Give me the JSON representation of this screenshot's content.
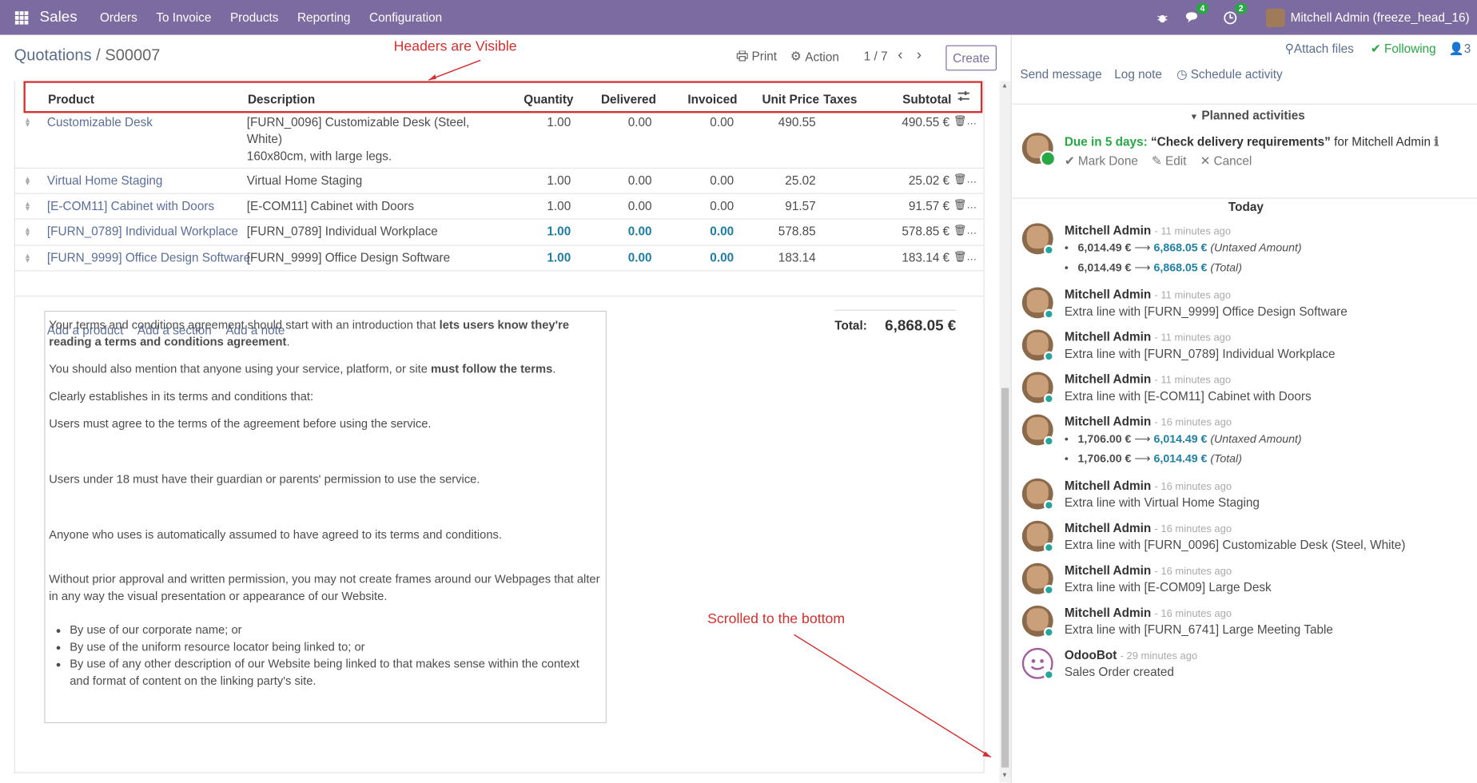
{
  "nav": {
    "brand": "Sales",
    "menus": [
      "Orders",
      "To Invoice",
      "Products",
      "Reporting",
      "Configuration"
    ],
    "chat_count": "4",
    "activity_count": "2",
    "user": "Mitchell Admin (freeze_head_16)"
  },
  "cp": {
    "crumb_parent": "Quotations",
    "crumb_sep": "/",
    "crumb_current": "S00007",
    "print": "Print",
    "action": "Action",
    "pager": "1 / 7",
    "create": "Create"
  },
  "annotations": {
    "top": "Headers are Visible",
    "bottom": "Scrolled to the bottom"
  },
  "table": {
    "headers": [
      "Product",
      "Description",
      "Quantity",
      "Delivered",
      "Invoiced",
      "Unit Price",
      "Taxes",
      "Subtotal"
    ],
    "rows": [
      {
        "product": "Customizable Desk",
        "desc1": "[FURN_0096] Customizable Desk (Steel,",
        "desc2": "White)",
        "desc3": "160x80cm, with large legs.",
        "qty": "1.00",
        "delivered": "0.00",
        "invoiced": "0.00",
        "price": "490.55",
        "subtotal": "490.55 €"
      },
      {
        "product": "Virtual Home Staging",
        "desc1": "Virtual Home Staging",
        "qty": "1.00",
        "delivered": "0.00",
        "invoiced": "0.00",
        "price": "25.02",
        "subtotal": "25.02 €"
      },
      {
        "product": "[E-COM11] Cabinet with Doors",
        "desc1": "[E-COM11] Cabinet with Doors",
        "qty": "1.00",
        "delivered": "0.00",
        "invoiced": "0.00",
        "price": "91.57",
        "subtotal": "91.57 €"
      },
      {
        "product": "[FURN_0789] Individual Workplace",
        "desc1": "[FURN_0789] Individual Workplace",
        "qty": "1.00",
        "delivered": "0.00",
        "invoiced": "0.00",
        "price": "578.85",
        "subtotal": "578.85 €"
      },
      {
        "product": "[FURN_9999] Office Design Software",
        "desc1": "[FURN_9999] Office Design Software",
        "qty": "1.00",
        "delivered": "0.00",
        "invoiced": "0.00",
        "price": "183.14",
        "subtotal": "183.14 €"
      }
    ],
    "add_product": "Add a product",
    "add_section": "Add a section",
    "add_note": "Add a note"
  },
  "terms": {
    "p1a": "Your terms and conditions agreement should start with an introduction that ",
    "p1b": "lets users know they're reading a terms and conditions agreement",
    "p1c": ".",
    "p2a": "You should also mention that anyone using your service, platform, or site ",
    "p2b": "must follow the terms",
    "p2c": ".",
    "p3": "Clearly establishes in its terms and conditions that:",
    "p4": "Users must agree to the terms of the agreement before using the service.",
    "p5": "Users under 18 must have their guardian or parents' permission to use the service.",
    "p6": "Anyone who uses is automatically assumed to have agreed to its terms and conditions.",
    "p7": "Without prior approval and written permission, you may not create frames around our Webpages that alter in any way the visual presentation or appearance of our Website.",
    "li1": "By use of our corporate name; or",
    "li2": "By use of the uniform resource locator being linked to; or",
    "li3": "By use of any other description of our Website being linked to that makes sense within the context and format of content on the linking party's site."
  },
  "totals": {
    "label": "Total:",
    "value": "6,868.05 €"
  },
  "chatter": {
    "attach": "Attach files",
    "following": "Following",
    "followers": "3",
    "send": "Send message",
    "log": "Log note",
    "schedule": "Schedule activity",
    "planned": "Planned activities",
    "activity": {
      "due": "Due in 5 days:",
      "summary": "“Check delivery requirements”",
      "for": "for Mitchell Admin",
      "mark": "Mark Done",
      "edit": "Edit",
      "cancel": "Cancel"
    },
    "today": "Today",
    "m1": {
      "author": "Mitchell Admin",
      "ago": "- 11 minutes ago",
      "l1_old": "6,014.49 €",
      "l1_new": "6,868.05 €",
      "l1_f": "(Untaxed Amount)",
      "l2_old": "6,014.49 €",
      "l2_new": "6,868.05 €",
      "l2_f": "(Total)"
    },
    "m2": {
      "author": "Mitchell Admin",
      "ago": "- 11 minutes ago",
      "body": "Extra line with [FURN_9999] Office Design Software"
    },
    "m3": {
      "author": "Mitchell Admin",
      "ago": "- 11 minutes ago",
      "body": "Extra line with [FURN_0789] Individual Workplace"
    },
    "m4": {
      "author": "Mitchell Admin",
      "ago": "- 11 minutes ago",
      "body": "Extra line with [E-COM11] Cabinet with Doors"
    },
    "m5": {
      "author": "Mitchell Admin",
      "ago": "- 16 minutes ago",
      "l1_old": "1,706.00 €",
      "l1_new": "6,014.49 €",
      "l1_f": "(Untaxed Amount)",
      "l2_old": "1,706.00 €",
      "l2_new": "6,014.49 €",
      "l2_f": "(Total)"
    },
    "m6": {
      "author": "Mitchell Admin",
      "ago": "- 16 minutes ago",
      "body": "Extra line with Virtual Home Staging"
    },
    "m7": {
      "author": "Mitchell Admin",
      "ago": "- 16 minutes ago",
      "body": "Extra line with [FURN_0096] Customizable Desk (Steel, White)"
    },
    "m8": {
      "author": "Mitchell Admin",
      "ago": "- 16 minutes ago",
      "body": "Extra line with [E-COM09] Large Desk"
    },
    "m9": {
      "author": "Mitchell Admin",
      "ago": "- 16 minutes ago",
      "body": "Extra line with [FURN_6741] Large Meeting Table"
    },
    "m10": {
      "author": "OdooBot",
      "ago": "- 29 minutes ago",
      "body": "Sales Order created"
    }
  }
}
